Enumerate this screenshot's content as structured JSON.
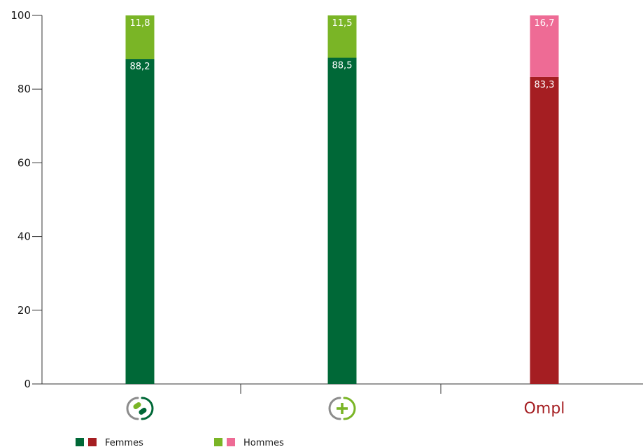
{
  "chart_data": {
    "type": "bar",
    "stacked": true,
    "categories": [
      "",
      "",
      "Ompl"
    ],
    "category_icons": [
      "pharmacy-cross-pills-icon",
      "pharmacy-plus-icon",
      "ompl-logo"
    ],
    "series": [
      {
        "name": "Femmes",
        "values": [
          88.2,
          88.5,
          83.3
        ],
        "colors": [
          "#006837",
          "#006837",
          "#a51e22"
        ]
      },
      {
        "name": "Hommes",
        "values": [
          11.8,
          11.5,
          16.7
        ],
        "colors": [
          "#7ab526",
          "#7ab526",
          "#ee6b95"
        ]
      }
    ],
    "value_labels": [
      [
        "88,2",
        "88,5",
        "83,3"
      ],
      [
        "11,8",
        "11,5",
        "16,7"
      ]
    ],
    "ylim": [
      0,
      100
    ],
    "yticks": [
      0,
      20,
      40,
      60,
      80,
      100
    ],
    "xlabel": "",
    "ylabel": "",
    "title": "",
    "grid": false,
    "legend": {
      "placement": "bottom-left",
      "entries": [
        {
          "label": "Femmes",
          "swatches": [
            "#006837",
            "#a51e22"
          ]
        },
        {
          "label": "Hommes",
          "swatches": [
            "#7ab526",
            "#ee6b95"
          ]
        }
      ]
    }
  }
}
